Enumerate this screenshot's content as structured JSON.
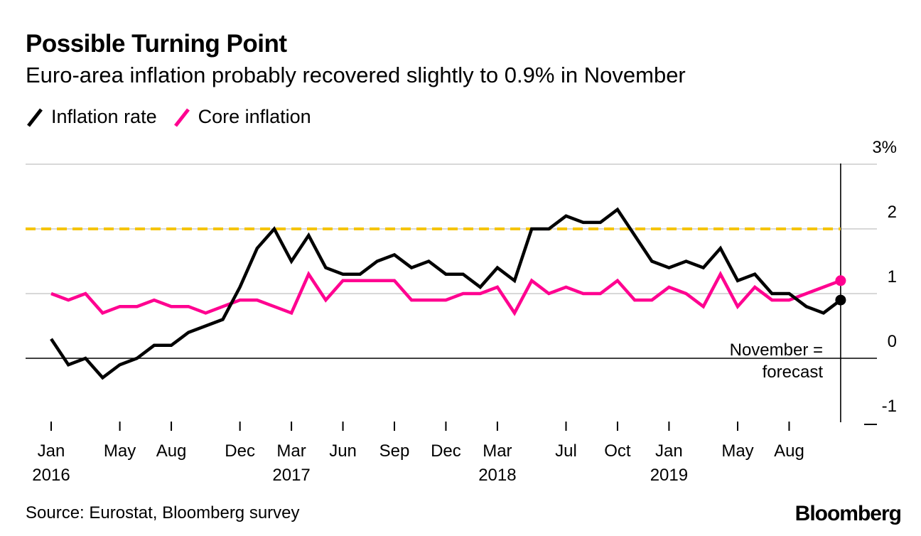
{
  "title": "Possible Turning Point",
  "subtitle": "Euro-area inflation probably recovered slightly to 0.9% in November",
  "source": "Source: Eurostat, Bloomberg survey",
  "brand": "Bloomberg",
  "annotation": {
    "line1": "November =",
    "line2": "forecast"
  },
  "colors": {
    "inflation": "#000000",
    "core": "#ff0090",
    "target": "#f5c400",
    "grid": "#d8d8d8"
  },
  "chart_data": {
    "type": "line",
    "title": "Possible Turning Point",
    "subtitle": "Euro-area inflation probably recovered slightly to 0.9% in November",
    "ylabel": "%",
    "ylim": [
      -1,
      3
    ],
    "yticks": [
      -1,
      0,
      1,
      2,
      3
    ],
    "ytick_labels": [
      "-1",
      "0",
      "1",
      "2",
      "3%"
    ],
    "xaxis": {
      "start": "2016-01",
      "end": "2019-11",
      "ticks": [
        {
          "index": 0,
          "label": "Jan",
          "year": "2016"
        },
        {
          "index": 4,
          "label": "May",
          "year": ""
        },
        {
          "index": 7,
          "label": "Aug",
          "year": ""
        },
        {
          "index": 11,
          "label": "Dec",
          "year": ""
        },
        {
          "index": 14,
          "label": "Mar",
          "year": "2017"
        },
        {
          "index": 17,
          "label": "Jun",
          "year": ""
        },
        {
          "index": 20,
          "label": "Sep",
          "year": ""
        },
        {
          "index": 23,
          "label": "Dec",
          "year": ""
        },
        {
          "index": 26,
          "label": "Mar",
          "year": "2018"
        },
        {
          "index": 30,
          "label": "Jul",
          "year": ""
        },
        {
          "index": 33,
          "label": "Oct",
          "year": ""
        },
        {
          "index": 36,
          "label": "Jan",
          "year": "2019"
        },
        {
          "index": 40,
          "label": "May",
          "year": ""
        },
        {
          "index": 43,
          "label": "Aug",
          "year": ""
        }
      ]
    },
    "reference_line": {
      "value": 2.0,
      "style": "dashed"
    },
    "series": [
      {
        "name": "Inflation rate",
        "values": [
          0.3,
          -0.1,
          0.0,
          -0.3,
          -0.1,
          0.0,
          0.2,
          0.2,
          0.4,
          0.5,
          0.6,
          1.1,
          1.7,
          2.0,
          1.5,
          1.9,
          1.4,
          1.3,
          1.3,
          1.5,
          1.6,
          1.4,
          1.5,
          1.3,
          1.3,
          1.1,
          1.4,
          1.2,
          2.0,
          2.0,
          2.2,
          2.1,
          2.1,
          2.3,
          1.9,
          1.5,
          1.4,
          1.5,
          1.4,
          1.7,
          1.2,
          1.3,
          1.0,
          1.0,
          0.8,
          0.7,
          0.9
        ]
      },
      {
        "name": "Core inflation",
        "values": [
          1.0,
          0.9,
          1.0,
          0.7,
          0.8,
          0.8,
          0.9,
          0.8,
          0.8,
          0.7,
          0.8,
          0.9,
          0.9,
          0.8,
          0.7,
          1.3,
          0.9,
          1.2,
          1.2,
          1.2,
          1.2,
          0.9,
          0.9,
          0.9,
          1.0,
          1.0,
          1.1,
          0.7,
          1.2,
          1.0,
          1.1,
          1.0,
          1.0,
          1.2,
          0.9,
          0.9,
          1.1,
          1.0,
          0.8,
          1.3,
          0.8,
          1.1,
          0.9,
          0.9,
          1.0,
          1.1,
          1.2
        ]
      }
    ],
    "legend": [
      "Inflation rate",
      "Core inflation"
    ],
    "legend_position": "top-left"
  }
}
